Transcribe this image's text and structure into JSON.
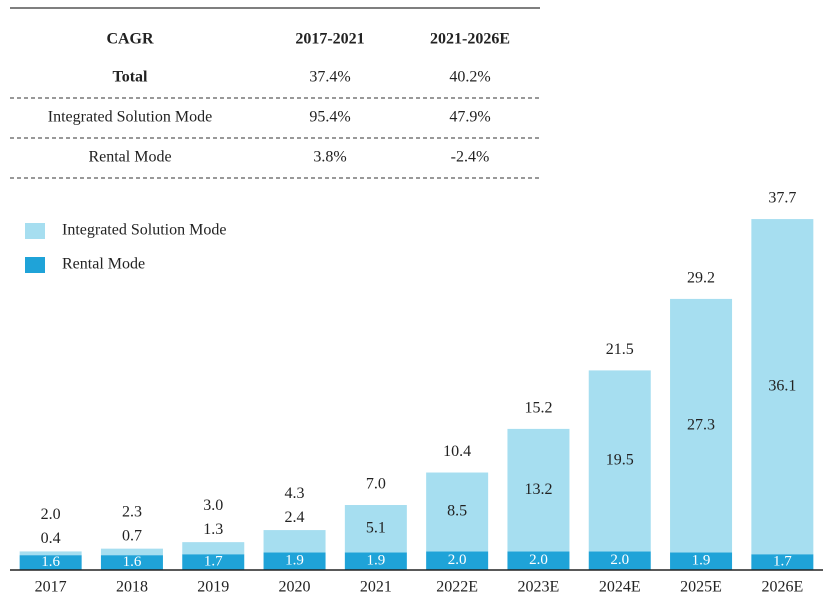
{
  "table": {
    "header": [
      "CAGR",
      "2017-2021",
      "2021-2026E"
    ],
    "rows": [
      [
        "Total",
        "37.4%",
        "40.2%"
      ],
      [
        "Integrated Solution Mode",
        "95.4%",
        "47.9%"
      ],
      [
        "Rental Mode",
        "3.8%",
        "-2.4%"
      ]
    ]
  },
  "chart_data": {
    "type": "stacked_bar",
    "categories": [
      "2017",
      "2018",
      "2019",
      "2020",
      "2021",
      "2022E",
      "2023E",
      "2024E",
      "2025E",
      "2026E"
    ],
    "series": [
      {
        "name": "Rental Mode",
        "color": "#1fa3d8",
        "values": [
          1.6,
          1.6,
          1.7,
          1.9,
          1.9,
          2.0,
          2.0,
          2.0,
          1.9,
          1.7
        ],
        "value_labels": [
          "1.6",
          "1.6",
          "1.7",
          "1.9",
          "1.9",
          "2.0",
          "2.0",
          "2.0",
          "1.9",
          "1.7"
        ]
      },
      {
        "name": "Integrated Solution Mode",
        "color": "#a6def0",
        "values": [
          0.4,
          0.7,
          1.3,
          2.4,
          5.1,
          8.5,
          13.2,
          19.5,
          27.3,
          36.1
        ]
      }
    ],
    "totals": [
      2.0,
      2.3,
      3.0,
      4.3,
      7.0,
      10.4,
      15.2,
      21.5,
      29.2,
      37.7
    ],
    "total_labels": [
      "2.0",
      "2.3",
      "3.0",
      "4.3",
      "7.0",
      "10.4",
      "15.2",
      "21.5",
      "29.2",
      "37.7"
    ]
  }
}
